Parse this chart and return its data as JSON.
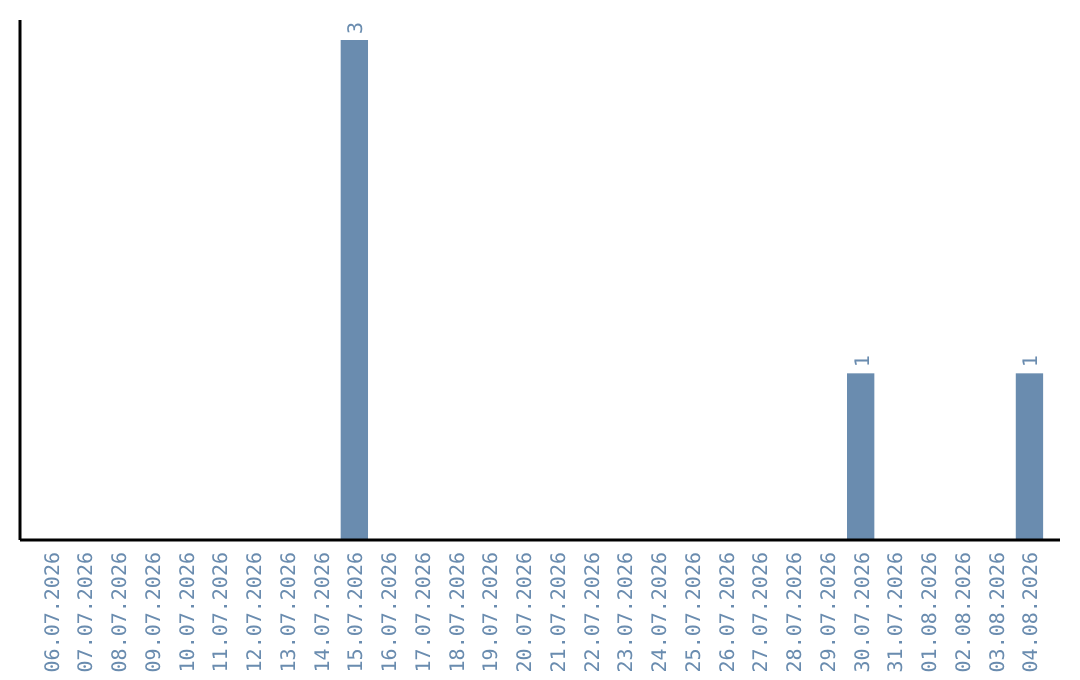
{
  "chart_data": {
    "type": "bar",
    "categories": [
      "06.07.2026",
      "07.07.2026",
      "08.07.2026",
      "09.07.2026",
      "10.07.2026",
      "11.07.2026",
      "12.07.2026",
      "13.07.2026",
      "14.07.2026",
      "15.07.2026",
      "16.07.2026",
      "17.07.2026",
      "18.07.2026",
      "19.07.2026",
      "20.07.2026",
      "21.07.2026",
      "22.07.2026",
      "23.07.2026",
      "24.07.2026",
      "25.07.2026",
      "26.07.2026",
      "27.07.2026",
      "28.07.2026",
      "29.07.2026",
      "30.07.2026",
      "31.07.2026",
      "01.08.2026",
      "02.08.2026",
      "03.08.2026",
      "04.08.2026"
    ],
    "values": [
      0,
      0,
      0,
      0,
      0,
      0,
      0,
      0,
      0,
      3,
      0,
      0,
      0,
      0,
      0,
      0,
      0,
      0,
      0,
      0,
      0,
      0,
      0,
      0,
      1,
      0,
      0,
      0,
      0,
      1
    ],
    "value_labels": [
      null,
      null,
      null,
      null,
      null,
      null,
      null,
      null,
      null,
      "3",
      null,
      null,
      null,
      null,
      null,
      null,
      null,
      null,
      null,
      null,
      null,
      null,
      null,
      null,
      "1",
      null,
      null,
      null,
      null,
      "1"
    ],
    "color": "#6a8caf",
    "tick_labels": "x"
  }
}
